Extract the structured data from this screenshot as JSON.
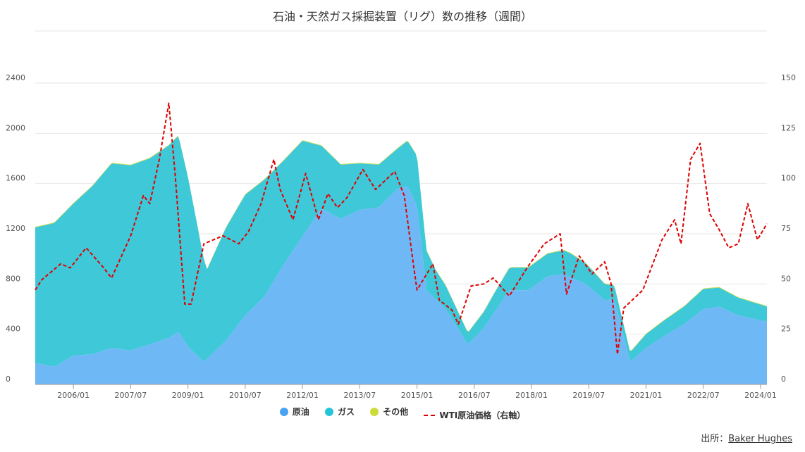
{
  "chart_data": {
    "type": "area",
    "title": "石油・天然ガス採掘装置（リグ）数の推移（週間）",
    "x_ticks": [
      "2006/01",
      "2007/07",
      "2009/01",
      "2010/07",
      "2012/01",
      "2013/07",
      "2015/01",
      "2016/07",
      "2018/01",
      "2019/07",
      "2021/01",
      "2022/07",
      "2024/01"
    ],
    "y_left": {
      "min": 0,
      "max": 2400,
      "ticks": [
        0,
        400,
        800,
        1200,
        1600,
        2000,
        2400
      ]
    },
    "y_right": {
      "min": 0,
      "max": 150,
      "ticks": [
        0,
        25,
        50,
        75,
        100,
        125,
        150
      ]
    },
    "x_range": [
      "2005/01",
      "2024/03"
    ],
    "series": [
      {
        "name": "原油",
        "kind": "stacked_area",
        "color": "#6eb8f5",
        "points": [
          [
            "2005/01",
            170
          ],
          [
            "2005/07",
            140
          ],
          [
            "2006/01",
            230
          ],
          [
            "2006/07",
            240
          ],
          [
            "2007/01",
            290
          ],
          [
            "2007/07",
            270
          ],
          [
            "2008/01",
            320
          ],
          [
            "2008/07",
            370
          ],
          [
            "2008/10",
            420
          ],
          [
            "2009/01",
            300
          ],
          [
            "2009/06",
            180
          ],
          [
            "2010/01",
            350
          ],
          [
            "2010/07",
            550
          ],
          [
            "2011/01",
            700
          ],
          [
            "2011/07",
            950
          ],
          [
            "2012/01",
            1180
          ],
          [
            "2012/07",
            1400
          ],
          [
            "2013/01",
            1320
          ],
          [
            "2013/07",
            1390
          ],
          [
            "2014/01",
            1410
          ],
          [
            "2014/07",
            1560
          ],
          [
            "2014/10",
            1580
          ],
          [
            "2015/01",
            1420
          ],
          [
            "2015/04",
            750
          ],
          [
            "2015/10",
            600
          ],
          [
            "2016/05",
            320
          ],
          [
            "2016/10",
            450
          ],
          [
            "2017/06",
            750
          ],
          [
            "2017/12",
            750
          ],
          [
            "2018/06",
            860
          ],
          [
            "2018/11",
            880
          ],
          [
            "2019/06",
            800
          ],
          [
            "2019/12",
            670
          ],
          [
            "2020/03",
            680
          ],
          [
            "2020/08",
            180
          ],
          [
            "2021/01",
            290
          ],
          [
            "2021/07",
            390
          ],
          [
            "2022/01",
            480
          ],
          [
            "2022/07",
            600
          ],
          [
            "2022/12",
            620
          ],
          [
            "2023/06",
            550
          ],
          [
            "2024/03",
            500
          ]
        ]
      },
      {
        "name": "ガス",
        "kind": "stacked_area",
        "color": "#3ec8d8",
        "points": [
          [
            "2005/01",
            1080
          ],
          [
            "2006/01",
            1210
          ],
          [
            "2007/01",
            1470
          ],
          [
            "2008/01",
            1480
          ],
          [
            "2008/10",
            1560
          ],
          [
            "2009/01",
            1350
          ],
          [
            "2009/07",
            710
          ],
          [
            "2010/01",
            900
          ],
          [
            "2010/07",
            960
          ],
          [
            "2011/01",
            930
          ],
          [
            "2011/07",
            830
          ],
          [
            "2012/01",
            760
          ],
          [
            "2012/07",
            500
          ],
          [
            "2013/01",
            430
          ],
          [
            "2013/07",
            370
          ],
          [
            "2014/01",
            340
          ],
          [
            "2014/07",
            320
          ],
          [
            "2015/01",
            400
          ],
          [
            "2015/07",
            230
          ],
          [
            "2016/05",
            90
          ],
          [
            "2017/01",
            150
          ],
          [
            "2017/07",
            180
          ],
          [
            "2018/06",
            180
          ],
          [
            "2019/01",
            190
          ],
          [
            "2019/07",
            160
          ],
          [
            "2020/03",
            110
          ],
          [
            "2020/08",
            75
          ],
          [
            "2021/01",
            110
          ],
          [
            "2022/01",
            140
          ],
          [
            "2022/07",
            160
          ],
          [
            "2023/06",
            140
          ],
          [
            "2024/03",
            120
          ]
        ]
      },
      {
        "name": "その他",
        "kind": "stacked_area",
        "color": "#cddc39",
        "points": [
          [
            "2005/01",
            5
          ],
          [
            "2024/03",
            5
          ]
        ]
      },
      {
        "name": "WTI原油価格（右軸）",
        "kind": "line",
        "axis": "right",
        "color": "#e00000",
        "dashed": true,
        "points": [
          [
            "2005/01",
            47
          ],
          [
            "2005/03",
            52
          ],
          [
            "2005/06",
            56
          ],
          [
            "2005/09",
            60
          ],
          [
            "2005/12",
            58
          ],
          [
            "2006/05",
            68
          ],
          [
            "2006/10",
            59
          ],
          [
            "2007/01",
            53
          ],
          [
            "2007/03",
            60
          ],
          [
            "2007/07",
            74
          ],
          [
            "2007/11",
            94
          ],
          [
            "2008/01",
            90
          ],
          [
            "2008/04",
            112
          ],
          [
            "2008/07",
            140
          ],
          [
            "2008/09",
            104
          ],
          [
            "2008/12",
            40
          ],
          [
            "2009/02",
            40
          ],
          [
            "2009/06",
            70
          ],
          [
            "2009/12",
            74
          ],
          [
            "2010/05",
            70
          ],
          [
            "2010/08",
            76
          ],
          [
            "2010/12",
            90
          ],
          [
            "2011/04",
            112
          ],
          [
            "2011/06",
            97
          ],
          [
            "2011/10",
            82
          ],
          [
            "2012/02",
            105
          ],
          [
            "2012/06",
            82
          ],
          [
            "2012/09",
            95
          ],
          [
            "2012/12",
            88
          ],
          [
            "2013/03",
            93
          ],
          [
            "2013/08",
            107
          ],
          [
            "2013/12",
            97
          ],
          [
            "2014/06",
            106
          ],
          [
            "2014/09",
            94
          ],
          [
            "2014/12",
            58
          ],
          [
            "2015/01",
            47
          ],
          [
            "2015/06",
            60
          ],
          [
            "2015/08",
            42
          ],
          [
            "2015/12",
            37
          ],
          [
            "2016/02",
            30
          ],
          [
            "2016/06",
            49
          ],
          [
            "2016/10",
            50
          ],
          [
            "2017/01",
            53
          ],
          [
            "2017/06",
            44
          ],
          [
            "2017/12",
            59
          ],
          [
            "2018/05",
            70
          ],
          [
            "2018/10",
            75
          ],
          [
            "2018/12",
            45
          ],
          [
            "2019/04",
            64
          ],
          [
            "2019/08",
            55
          ],
          [
            "2019/12",
            61
          ],
          [
            "2020/02",
            50
          ],
          [
            "2020/04",
            15
          ],
          [
            "2020/06",
            38
          ],
          [
            "2020/12",
            47
          ],
          [
            "2021/06",
            72
          ],
          [
            "2021/10",
            82
          ],
          [
            "2021/12",
            70
          ],
          [
            "2022/03",
            112
          ],
          [
            "2022/06",
            120
          ],
          [
            "2022/09",
            85
          ],
          [
            "2022/12",
            77
          ],
          [
            "2023/03",
            68
          ],
          [
            "2023/06",
            70
          ],
          [
            "2023/09",
            90
          ],
          [
            "2023/12",
            72
          ],
          [
            "2024/03",
            80
          ]
        ]
      }
    ],
    "legend": {
      "position": "bottom"
    },
    "grid": true
  },
  "source": {
    "label": "出所：",
    "link_text": "Baker Hughes"
  }
}
